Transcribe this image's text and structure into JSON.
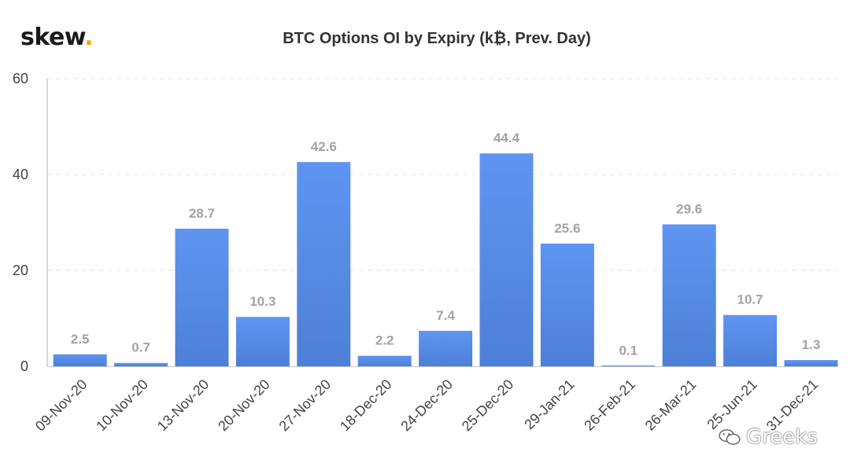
{
  "brand": {
    "name": "skew",
    "dot": "."
  },
  "watermark": {
    "text": "Greeks",
    "icon": "wechat-icon"
  },
  "colors": {
    "bar_top": "#5f95f2",
    "bar_bottom": "#4d80d6",
    "label": "#a3a3a3",
    "axis_text": "#444444",
    "grid": "#e3e3e3"
  },
  "chart_data": {
    "type": "bar",
    "title": "BTC Options OI by Expiry (k₿, Prev. Day)",
    "categories": [
      "09-Nov-20",
      "10-Nov-20",
      "13-Nov-20",
      "20-Nov-20",
      "27-Nov-20",
      "18-Dec-20",
      "24-Dec-20",
      "25-Dec-20",
      "29-Jan-21",
      "26-Feb-21",
      "26-Mar-21",
      "25-Jun-21",
      "31-Dec-21"
    ],
    "values": [
      2.5,
      0.7,
      28.7,
      10.3,
      42.6,
      2.2,
      7.4,
      44.4,
      25.6,
      0.1,
      29.6,
      10.7,
      1.3
    ],
    "value_labels": [
      "2.5",
      "0.7",
      "28.7",
      "10.3",
      "42.6",
      "2.2",
      "7.4",
      "44.4",
      "25.6",
      "0.1",
      "29.6",
      "10.7",
      "1.3"
    ],
    "yticks": [
      "0",
      "20",
      "40",
      "60"
    ],
    "ylim": [
      0,
      60
    ],
    "grid": true,
    "xlabel": "",
    "ylabel": ""
  }
}
